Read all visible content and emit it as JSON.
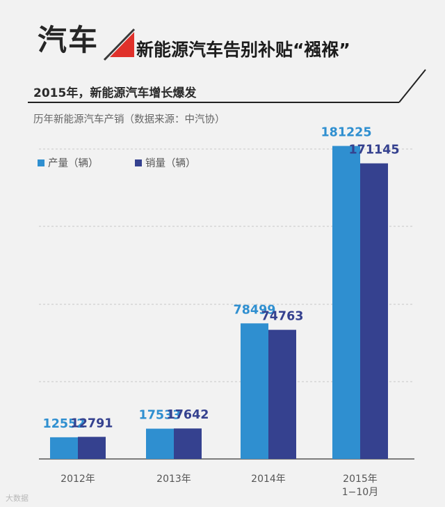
{
  "header": {
    "brand": "汽车",
    "headline": "新能源汽车告别补贴“襁褓”"
  },
  "subtitle": "2015年，新能源汽车增长爆发",
  "source": "历年新能源汽车产销（数据来源：中汽协）",
  "footer_logo": "大数据",
  "colors": {
    "production": "#2f8fd0",
    "sales": "#35418f",
    "accent_red": "#e0312b",
    "grid": "#c8c8c8",
    "axis": "#555555"
  },
  "chart_data": {
    "type": "bar",
    "title": "历年新能源汽车产销（数据来源：中汽协）",
    "categories": [
      "2012年",
      "2013年",
      "2014年",
      "2015年\n1−10月"
    ],
    "series": [
      {
        "name": "产量（辆）",
        "values": [
          12552,
          17533,
          78499,
          181225
        ]
      },
      {
        "name": "销量（辆）",
        "values": [
          12791,
          17642,
          74763,
          171145
        ]
      }
    ],
    "xlabel": "",
    "ylabel": "",
    "ylim": [
      0,
      200000
    ],
    "grid": true,
    "legend": "top-left"
  }
}
